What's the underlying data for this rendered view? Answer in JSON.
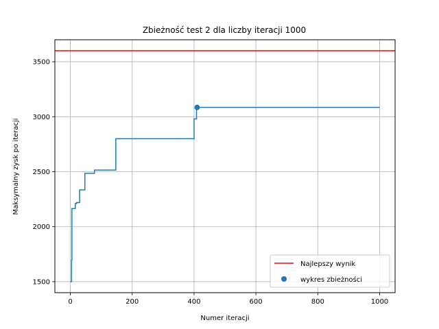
{
  "chart_data": {
    "type": "line",
    "title": "Zbieżność test 2 dla liczby iteracji 1000",
    "xlabel": "Numer iteracji",
    "ylabel": "Maksymalny zysk po iteracji",
    "xlim": [
      -50,
      1050
    ],
    "ylim": [
      1400,
      3700
    ],
    "xticks": [
      0,
      200,
      400,
      600,
      800,
      1000
    ],
    "yticks": [
      1500,
      2000,
      2500,
      3000,
      3500
    ],
    "xtick_labels": [
      "0",
      "200",
      "400",
      "600",
      "800",
      "1000"
    ],
    "ytick_labels": [
      "1500",
      "2000",
      "2500",
      "3000",
      "3500"
    ],
    "grid": true,
    "legend_position": "lower-right",
    "series": [
      {
        "name": "wykres zbieżności",
        "kind": "step-line",
        "color": "#1f77b4",
        "x": [
          0,
          2,
          4,
          5,
          12,
          16,
          20,
          30,
          45,
          47,
          75,
          78,
          145,
          147,
          398,
          400,
          406,
          408,
          1000
        ],
        "y": [
          1500,
          1500,
          1700,
          2165,
          2165,
          2210,
          2220,
          2335,
          2335,
          2485,
          2485,
          2515,
          2515,
          2800,
          2800,
          2980,
          2980,
          3085,
          3085
        ]
      },
      {
        "name": "wykres zbieżności",
        "kind": "scatter",
        "color": "#1f77b4",
        "x": [
          410
        ],
        "y": [
          3085
        ]
      },
      {
        "name": "Najlepszy wynik",
        "kind": "hline",
        "color": "#ff0000",
        "y": 3600
      }
    ],
    "legend": [
      {
        "label": "Najlepszy wynik",
        "kind": "line",
        "color": "#ff0000"
      },
      {
        "label": "wykres zbieżności",
        "kind": "marker",
        "color": "#1f77b4"
      }
    ]
  }
}
